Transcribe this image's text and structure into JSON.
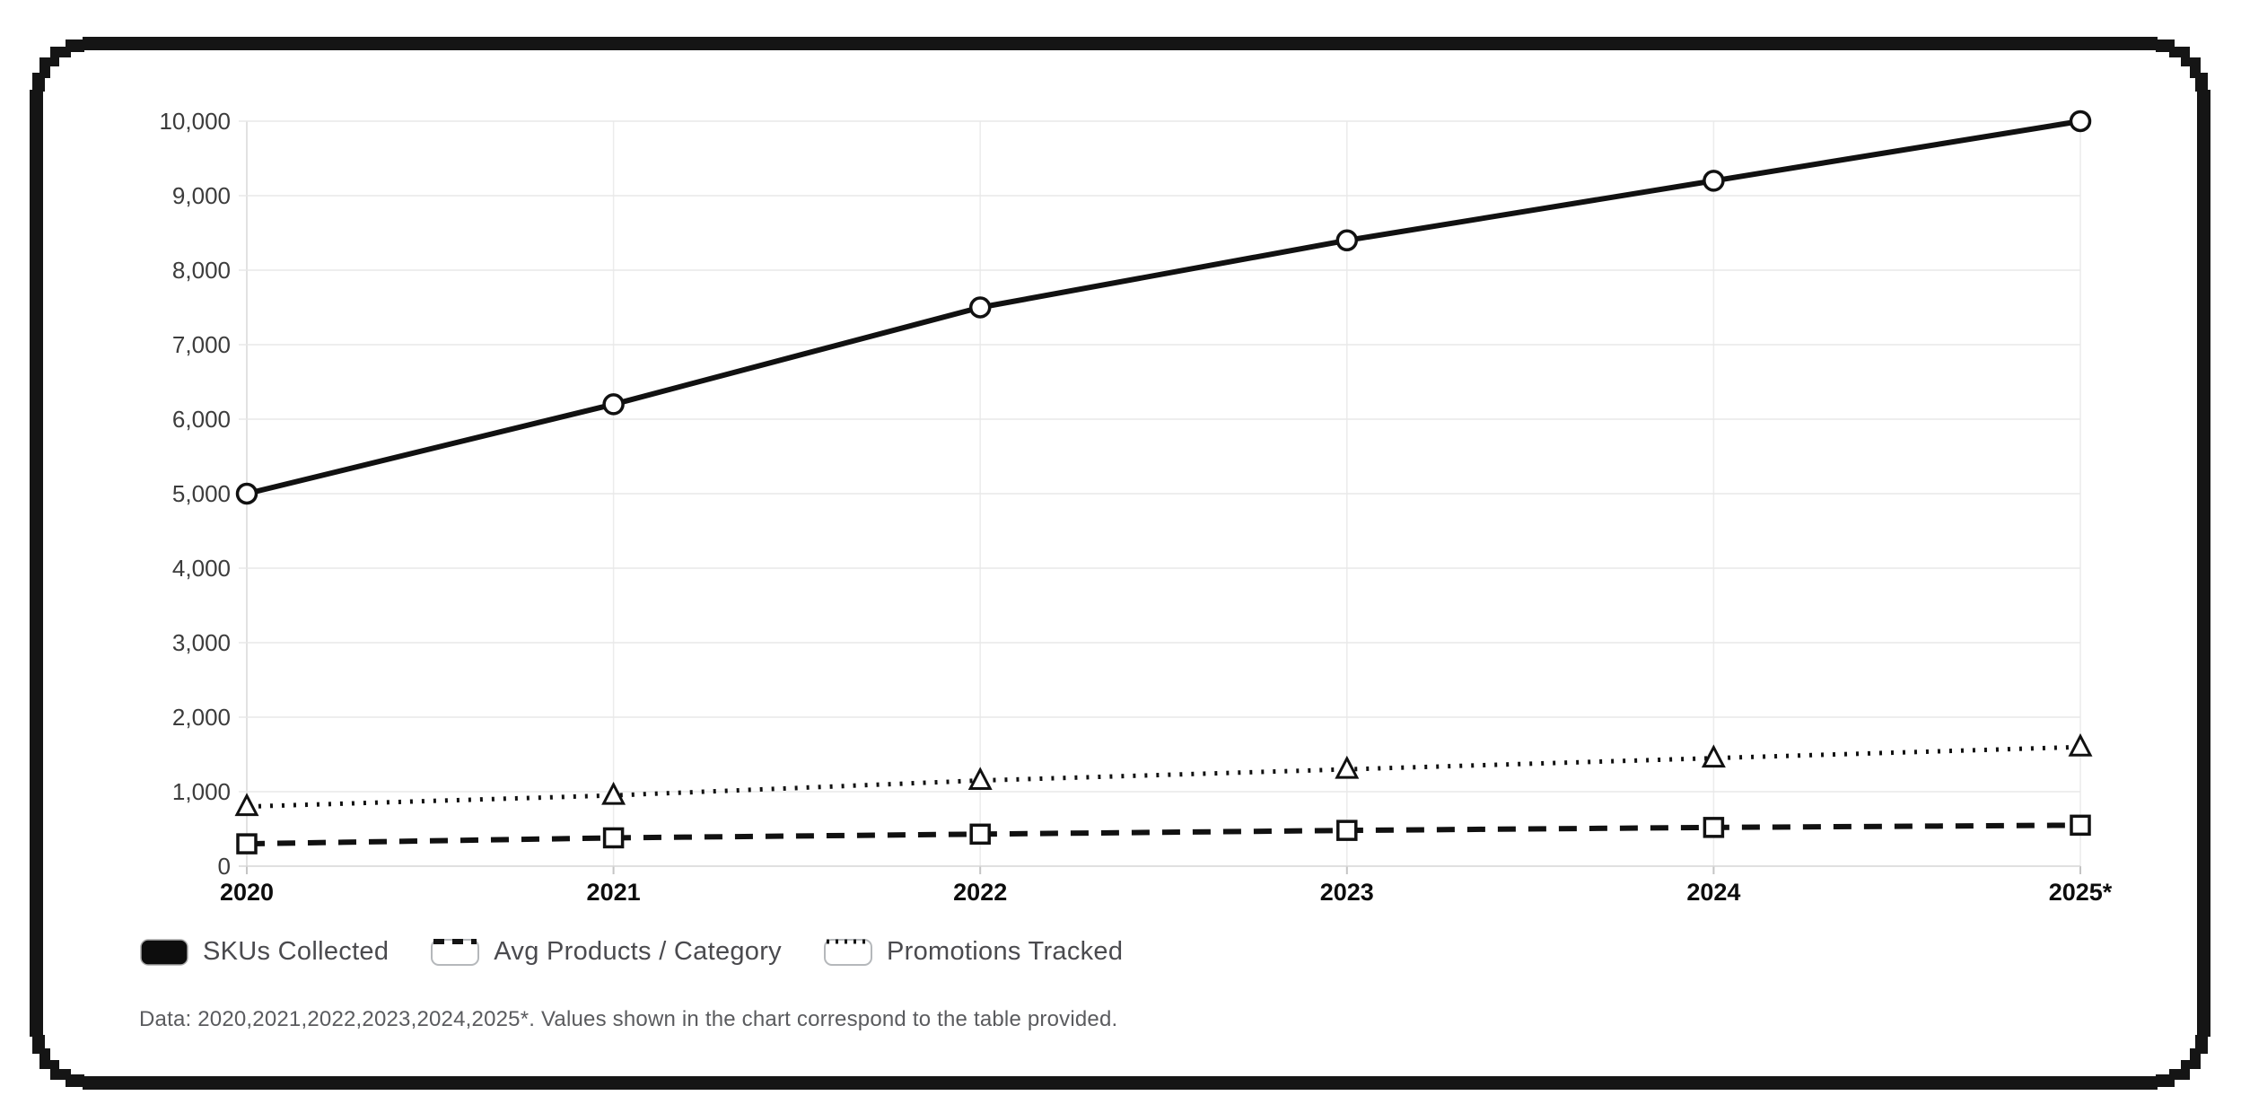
{
  "chart_data": {
    "type": "line",
    "categories": [
      "2020",
      "2021",
      "2022",
      "2023",
      "2024",
      "2025*"
    ],
    "series": [
      {
        "name": "SKUs Collected",
        "values": [
          5000,
          6200,
          7500,
          8400,
          9200,
          10000
        ],
        "style": "solid",
        "marker": "circle"
      },
      {
        "name": "Avg Products / Category",
        "values": [
          300,
          380,
          430,
          480,
          520,
          550
        ],
        "style": "dashed",
        "marker": "square"
      },
      {
        "name": "Promotions Tracked",
        "values": [
          800,
          950,
          1150,
          1300,
          1450,
          1600
        ],
        "style": "dotted",
        "marker": "triangle"
      }
    ],
    "title": "",
    "xlabel": "",
    "ylabel": "",
    "ylim": [
      0,
      10000
    ],
    "ytick_step": 1000,
    "yticks": [
      "0",
      "1,000",
      "2,000",
      "3,000",
      "4,000",
      "5,000",
      "6,000",
      "7,000",
      "8,000",
      "9,000",
      "10,000"
    ],
    "grid": true,
    "legend_position": "bottom-left",
    "line_color": "#111111"
  },
  "legend": {
    "items": [
      {
        "label": "SKUs Collected"
      },
      {
        "label": "Avg Products / Category"
      },
      {
        "label": "Promotions Tracked"
      }
    ]
  },
  "footer": {
    "note": "Data: 2020,2021,2022,2023,2024,2025*. Values shown in the chart correspond to the table provided."
  },
  "colors": {
    "line": "#111111",
    "grid": "#e8e8e8",
    "axis_line": "#d6d6d6",
    "axis_label": "#3c3c3c",
    "x_label": "#0d0d0d",
    "legend_text": "#4a4a4e",
    "footer_text": "#5a5b5e",
    "frame": "#151515",
    "marker_fill": "#ffffff"
  }
}
